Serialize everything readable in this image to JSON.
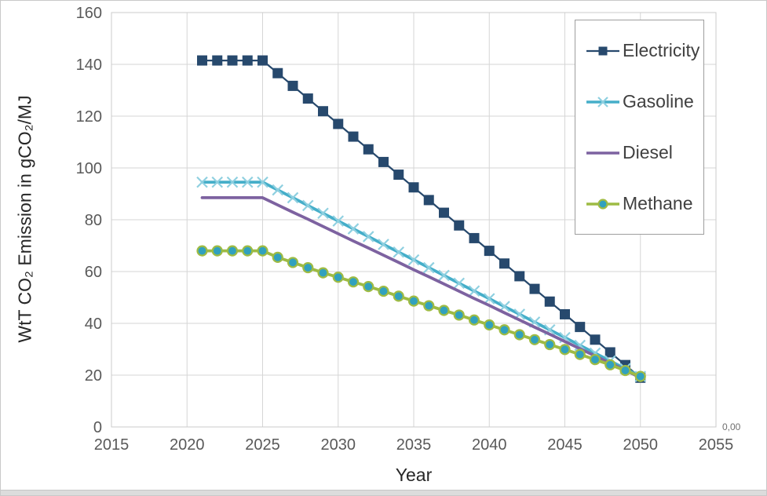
{
  "window": {
    "border_color": "#c9c9c9",
    "bottom_band_color": "#dcdcdc",
    "background": "#ffffff"
  },
  "chart_data": {
    "type": "line",
    "title": "",
    "xlabel": "Year",
    "ylabel": "WtT CO₂ Emission in gCO₂/MJ",
    "xlim": [
      2015,
      2055
    ],
    "ylim": [
      0,
      160
    ],
    "x_ticks": [
      2015,
      2020,
      2025,
      2030,
      2035,
      2040,
      2045,
      2050,
      2055
    ],
    "y_ticks": [
      0,
      20,
      40,
      60,
      80,
      100,
      120,
      140,
      160
    ],
    "grid": true,
    "legend_position": "top-right",
    "secondary_y_label": "0,00",
    "x": [
      2021,
      2022,
      2023,
      2024,
      2025,
      2026,
      2027,
      2028,
      2029,
      2030,
      2031,
      2032,
      2033,
      2034,
      2035,
      2036,
      2037,
      2038,
      2039,
      2040,
      2041,
      2042,
      2043,
      2044,
      2045,
      2046,
      2047,
      2048,
      2049,
      2050
    ],
    "series": [
      {
        "name": "Electricity",
        "color": "#27496d",
        "marker": "square",
        "marker_color": "#27496d",
        "line_width": 2.2,
        "values": [
          141.5,
          141.5,
          141.5,
          141.5,
          141.5,
          136.6,
          131.7,
          126.8,
          121.9,
          117.0,
          112.1,
          107.2,
          102.3,
          97.4,
          92.5,
          87.6,
          82.7,
          77.8,
          72.9,
          68.0,
          63.1,
          58.2,
          53.3,
          48.4,
          43.5,
          38.6,
          33.7,
          28.8,
          23.9,
          19.0
        ]
      },
      {
        "name": "Gasoline",
        "color": "#45aec9",
        "marker": "x",
        "marker_color": "#8fd0e0",
        "line_width": 3.8,
        "values": [
          94.5,
          94.5,
          94.5,
          94.5,
          94.5,
          91.5,
          88.5,
          85.5,
          82.5,
          79.5,
          76.5,
          73.5,
          70.5,
          67.5,
          64.5,
          61.5,
          58.5,
          55.5,
          52.5,
          49.5,
          46.5,
          43.5,
          40.5,
          37.5,
          34.5,
          31.5,
          28.5,
          25.5,
          22.5,
          19.5
        ]
      },
      {
        "name": "Diesel",
        "color": "#7d62a0",
        "marker": "none",
        "marker_color": "#7d62a0",
        "line_width": 3.8,
        "values": [
          88.5,
          88.5,
          88.5,
          88.5,
          88.5,
          85.7,
          82.9,
          80.2,
          77.4,
          74.6,
          71.8,
          69.1,
          66.3,
          63.5,
          60.7,
          58.0,
          55.2,
          52.4,
          49.6,
          46.9,
          44.1,
          41.3,
          38.5,
          35.8,
          33.0,
          30.2,
          27.4,
          24.6,
          21.9,
          19.0
        ]
      },
      {
        "name": "Methane",
        "color": "#9ebb44",
        "marker": "circle",
        "marker_color": "#31a1be",
        "line_width": 3.8,
        "values": [
          68.0,
          68.0,
          68.0,
          68.0,
          68.0,
          65.5,
          63.5,
          61.5,
          59.5,
          57.8,
          56.0,
          54.2,
          52.4,
          50.5,
          48.6,
          46.8,
          45.0,
          43.2,
          41.3,
          39.4,
          37.5,
          35.6,
          33.7,
          31.8,
          29.9,
          28.0,
          26.0,
          24.0,
          21.8,
          19.5
        ]
      }
    ],
    "style": {
      "gridline_color": "#d6d6d6",
      "plot_border_color": "#cbcbcb",
      "tick_label_color": "#595959",
      "axis_title_color": "#262626",
      "legend_text_color": "#404040",
      "legend_border_color": "#9e9e9e"
    }
  }
}
